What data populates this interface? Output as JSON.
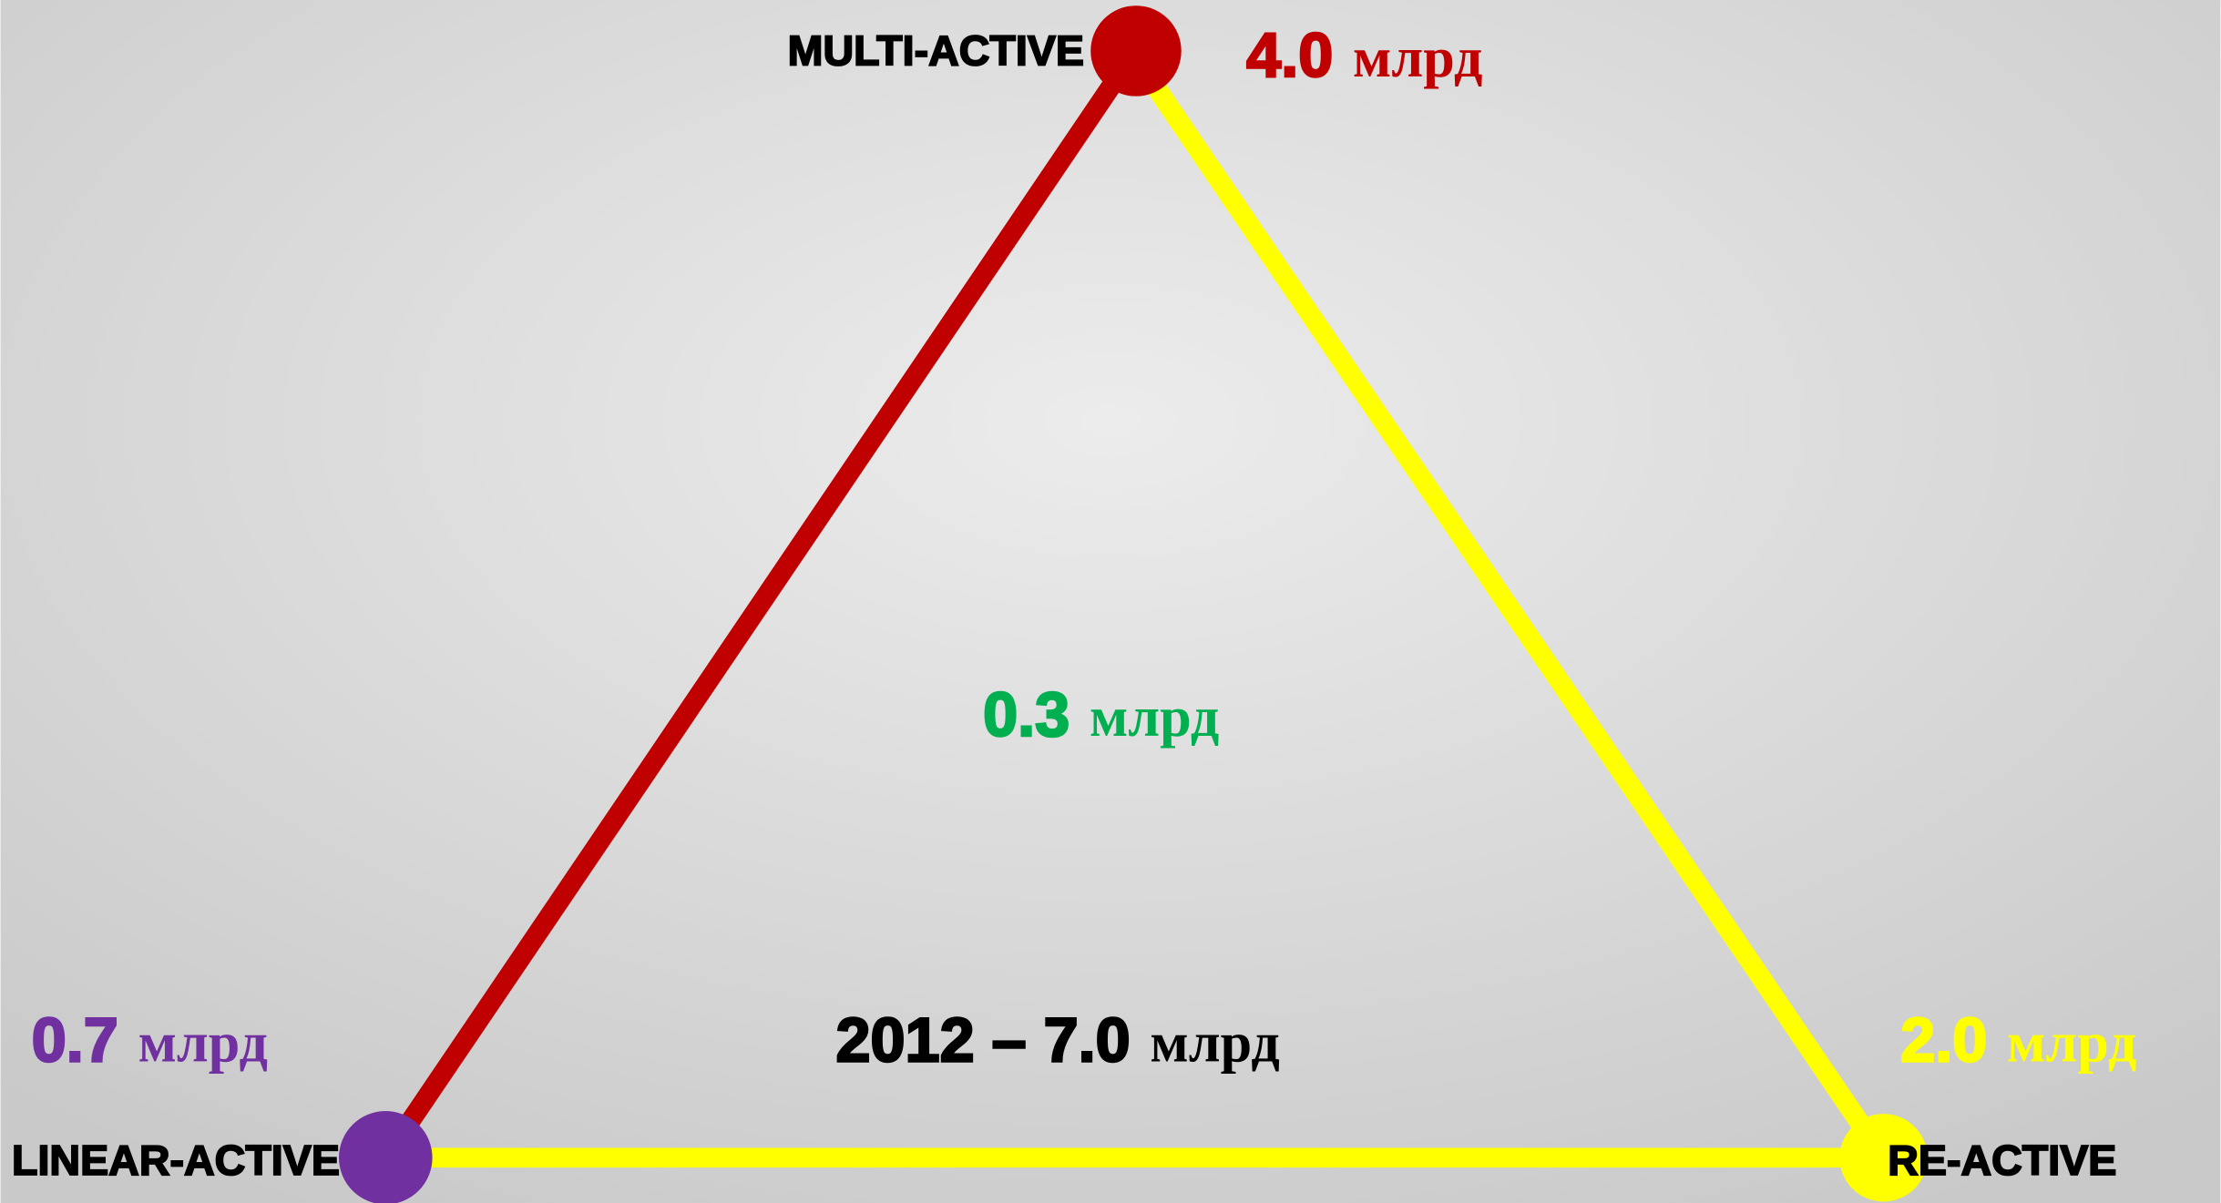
{
  "nodes": [
    {
      "label": "MULTI-ACTIVE",
      "value": "4.0",
      "unit": "млрд"
    },
    {
      "label": "LINEAR-ACTIVE",
      "value": "0.7",
      "unit": "млрд"
    },
    {
      "label": "RE-ACTIVE",
      "value": "2.0",
      "unit": "млрд"
    }
  ],
  "center": {
    "value": "0.3",
    "unit": "млрд"
  },
  "total": {
    "value": "2012 – 7.0",
    "unit": "млрд"
  }
}
